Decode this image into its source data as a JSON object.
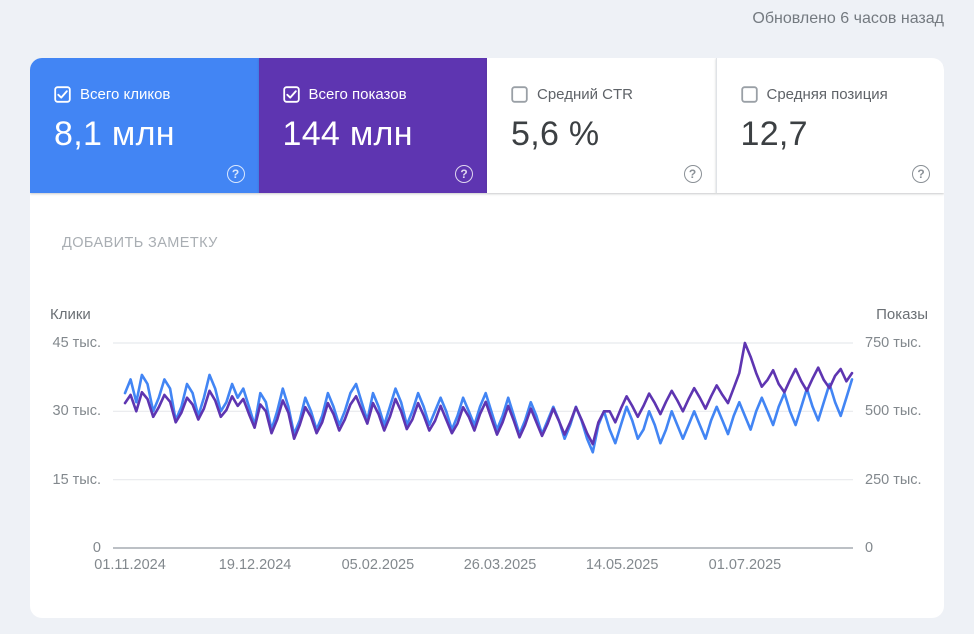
{
  "header": {
    "updated": "Обновлено 6 часов назад"
  },
  "metrics": {
    "cards": [
      {
        "id": "total-clicks",
        "label": "Всего кликов",
        "value": "8,1 млн",
        "checked": true,
        "bg": "#4285f4",
        "fg": "#ffffff"
      },
      {
        "id": "total-impressions",
        "label": "Всего показов",
        "value": "144 млн",
        "checked": true,
        "bg": "#5e35b1",
        "fg": "#ffffff"
      },
      {
        "id": "average-ctr",
        "label": "Средний CTR",
        "value": "5,6 %",
        "checked": false,
        "bg": "#ffffff",
        "fg": "#3c4043"
      },
      {
        "id": "average-position",
        "label": "Средняя позиция",
        "value": "12,7",
        "checked": false,
        "bg": "#ffffff",
        "fg": "#3c4043"
      }
    ]
  },
  "toolbar": {
    "add_note_label": "ДОБАВИТЬ ЗАМЕТКУ"
  },
  "chart_data": {
    "type": "line",
    "title": "",
    "grid": true,
    "legend_position": "none",
    "left_axis": {
      "label": "Клики",
      "unit": "тыс.",
      "range": [
        0,
        45
      ],
      "ticks": [
        "45 тыс.",
        "30 тыс.",
        "15 тыс.",
        "0"
      ],
      "tick_values": [
        45,
        30,
        15,
        0
      ]
    },
    "right_axis": {
      "label": "Показы",
      "unit": "тыс.",
      "range": [
        0,
        750
      ],
      "ticks": [
        "750 тыс.",
        "500 тыс.",
        "250 тыс.",
        "0"
      ],
      "tick_values": [
        750,
        500,
        250,
        0
      ]
    },
    "x_ticks": [
      "01.11.2024",
      "19.12.2024",
      "05.02.2025",
      "26.03.2025",
      "14.05.2025",
      "01.07.2025"
    ],
    "x_tick_pos_pct": [
      2.3,
      19.2,
      35.8,
      52.3,
      68.8,
      85.4
    ],
    "series": [
      {
        "name": "Клики",
        "axis": "left",
        "color": "#4285f4",
        "unit": "тыс.",
        "values": [
          34,
          37,
          32,
          38,
          36,
          30,
          33,
          37,
          35,
          28,
          31,
          36,
          34,
          29,
          33,
          38,
          35,
          30,
          32,
          36,
          33,
          35,
          31,
          27,
          34,
          32,
          26,
          30,
          35,
          31,
          25,
          28,
          33,
          30,
          26,
          29,
          34,
          31,
          27,
          30,
          34,
          36,
          32,
          28,
          34,
          31,
          27,
          31,
          35,
          32,
          27,
          30,
          34,
          31,
          27,
          30,
          33,
          30,
          26,
          29,
          33,
          30,
          27,
          31,
          34,
          30,
          26,
          29,
          33,
          29,
          25,
          28,
          32,
          29,
          25,
          28,
          31,
          28,
          24,
          27,
          31,
          28,
          24,
          21,
          27,
          30,
          26,
          23,
          27,
          31,
          28,
          24,
          26,
          30,
          27,
          23,
          26,
          30,
          27,
          24,
          27,
          30,
          27,
          24,
          28,
          31,
          28,
          25,
          29,
          32,
          29,
          26,
          30,
          33,
          30,
          27,
          31,
          34,
          30,
          27,
          31,
          35,
          31,
          28,
          32,
          36,
          32,
          29,
          33,
          37
        ]
      },
      {
        "name": "Показы",
        "axis": "right",
        "color": "#5e35b1",
        "unit": "тыс.",
        "values": [
          530,
          560,
          500,
          570,
          545,
          480,
          515,
          560,
          535,
          460,
          495,
          550,
          525,
          470,
          510,
          575,
          540,
          480,
          505,
          555,
          520,
          545,
          490,
          440,
          525,
          500,
          420,
          470,
          540,
          495,
          400,
          450,
          515,
          480,
          420,
          460,
          530,
          490,
          430,
          470,
          525,
          555,
          505,
          455,
          530,
          490,
          430,
          480,
          545,
          500,
          435,
          470,
          530,
          485,
          430,
          465,
          520,
          470,
          420,
          455,
          515,
          480,
          430,
          490,
          535,
          475,
          415,
          460,
          520,
          465,
          405,
          450,
          510,
          460,
          410,
          455,
          510,
          465,
          415,
          460,
          515,
          470,
          420,
          380,
          460,
          500,
          500,
          460,
          510,
          555,
          520,
          480,
          520,
          565,
          530,
          490,
          535,
          575,
          540,
          500,
          545,
          585,
          550,
          510,
          555,
          595,
          560,
          530,
          585,
          640,
          750,
          700,
          640,
          590,
          615,
          650,
          600,
          570,
          615,
          655,
          610,
          575,
          620,
          660,
          615,
          585,
          630,
          655,
          610,
          640
        ]
      }
    ],
    "colors": {
      "grid_line": "#e8eaed",
      "axis_line": "#a6acb2",
      "tick_text": "#82888d"
    }
  }
}
